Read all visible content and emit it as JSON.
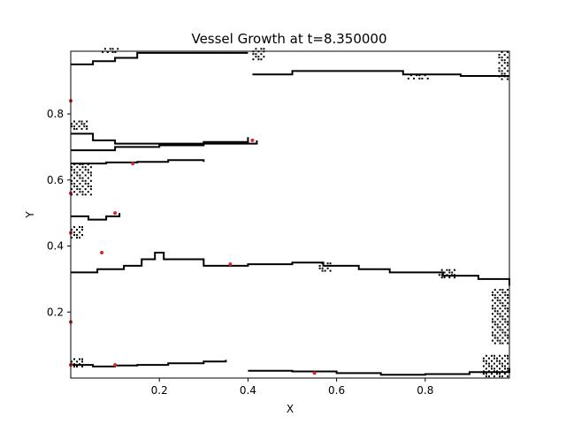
{
  "chart_data": {
    "type": "line",
    "title": "Vessel Growth at t=8.350000",
    "xlabel": "X",
    "ylabel": "Y",
    "xlim": [
      0.0,
      0.99
    ],
    "ylim": [
      0.0,
      0.99
    ],
    "xticks": [
      {
        "v": 0.2,
        "label": "0.2"
      },
      {
        "v": 0.4,
        "label": "0.4"
      },
      {
        "v": 0.6,
        "label": "0.6"
      },
      {
        "v": 0.8,
        "label": "0.8"
      }
    ],
    "yticks": [
      {
        "v": 0.2,
        "label": "0.2"
      },
      {
        "v": 0.4,
        "label": "0.4"
      },
      {
        "v": 0.6,
        "label": "0.6"
      },
      {
        "v": 0.8,
        "label": "0.8"
      }
    ],
    "grid": false,
    "line_color": "#000000",
    "tip_color": "#d62728",
    "vessels": [
      {
        "points": [
          [
            0.0,
            0.95
          ],
          [
            0.05,
            0.96
          ],
          [
            0.1,
            0.97
          ],
          [
            0.15,
            0.985
          ],
          [
            0.24,
            0.985
          ],
          [
            0.4,
            0.985
          ]
        ]
      },
      {
        "points": [
          [
            0.41,
            0.92
          ],
          [
            0.5,
            0.93
          ],
          [
            0.62,
            0.93
          ],
          [
            0.75,
            0.92
          ],
          [
            0.88,
            0.915
          ],
          [
            0.99,
            0.915
          ]
        ]
      },
      {
        "points": [
          [
            0.0,
            0.74
          ],
          [
            0.05,
            0.72
          ],
          [
            0.1,
            0.71
          ],
          [
            0.2,
            0.71
          ],
          [
            0.3,
            0.715
          ],
          [
            0.4,
            0.73
          ]
        ]
      },
      {
        "points": [
          [
            0.0,
            0.69
          ],
          [
            0.1,
            0.7
          ],
          [
            0.2,
            0.705
          ],
          [
            0.3,
            0.71
          ],
          [
            0.42,
            0.72
          ]
        ]
      },
      {
        "points": [
          [
            0.0,
            0.65
          ],
          [
            0.08,
            0.653
          ],
          [
            0.15,
            0.655
          ],
          [
            0.22,
            0.66
          ],
          [
            0.3,
            0.655
          ]
        ]
      },
      {
        "points": [
          [
            0.0,
            0.49
          ],
          [
            0.04,
            0.48
          ],
          [
            0.08,
            0.49
          ],
          [
            0.11,
            0.5
          ]
        ]
      },
      {
        "points": [
          [
            0.0,
            0.32
          ],
          [
            0.06,
            0.33
          ],
          [
            0.12,
            0.34
          ],
          [
            0.16,
            0.36
          ],
          [
            0.19,
            0.38
          ],
          [
            0.21,
            0.36
          ],
          [
            0.3,
            0.34
          ],
          [
            0.4,
            0.345
          ],
          [
            0.5,
            0.35
          ],
          [
            0.57,
            0.34
          ],
          [
            0.65,
            0.33
          ],
          [
            0.72,
            0.32
          ],
          [
            0.84,
            0.31
          ],
          [
            0.92,
            0.3
          ],
          [
            0.99,
            0.28
          ]
        ]
      },
      {
        "points": [
          [
            0.0,
            0.04
          ],
          [
            0.05,
            0.035
          ],
          [
            0.1,
            0.038
          ],
          [
            0.15,
            0.04
          ],
          [
            0.22,
            0.045
          ],
          [
            0.3,
            0.05
          ],
          [
            0.35,
            0.055
          ]
        ]
      },
      {
        "points": [
          [
            0.4,
            0.022
          ],
          [
            0.5,
            0.02
          ],
          [
            0.6,
            0.015
          ],
          [
            0.7,
            0.01
          ],
          [
            0.8,
            0.012
          ],
          [
            0.9,
            0.018
          ],
          [
            0.99,
            0.03
          ]
        ]
      }
    ],
    "clusters": [
      {
        "x": 0.07,
        "y": 0.98,
        "w": 0.04,
        "h": 0.02
      },
      {
        "x": 0.41,
        "y": 0.96,
        "w": 0.03,
        "h": 0.04
      },
      {
        "x": 0.76,
        "y": 0.9,
        "w": 0.05,
        "h": 0.02
      },
      {
        "x": 0.965,
        "y": 0.9,
        "w": 0.025,
        "h": 0.09
      },
      {
        "x": 0.0,
        "y": 0.75,
        "w": 0.04,
        "h": 0.03
      },
      {
        "x": 0.0,
        "y": 0.55,
        "w": 0.05,
        "h": 0.1
      },
      {
        "x": 0.0,
        "y": 0.42,
        "w": 0.03,
        "h": 0.04
      },
      {
        "x": 0.56,
        "y": 0.32,
        "w": 0.03,
        "h": 0.03
      },
      {
        "x": 0.83,
        "y": 0.3,
        "w": 0.04,
        "h": 0.03
      },
      {
        "x": 0.95,
        "y": 0.1,
        "w": 0.04,
        "h": 0.17
      },
      {
        "x": 0.93,
        "y": 0.0,
        "w": 0.06,
        "h": 0.07
      },
      {
        "x": 0.0,
        "y": 0.03,
        "w": 0.03,
        "h": 0.03
      }
    ],
    "tips": [
      {
        "x": 0.0,
        "y": 0.84
      },
      {
        "x": 0.41,
        "y": 0.72
      },
      {
        "x": 0.14,
        "y": 0.65
      },
      {
        "x": 0.0,
        "y": 0.56
      },
      {
        "x": 0.1,
        "y": 0.5
      },
      {
        "x": 0.0,
        "y": 0.44
      },
      {
        "x": 0.07,
        "y": 0.38
      },
      {
        "x": 0.36,
        "y": 0.345
      },
      {
        "x": 0.0,
        "y": 0.17
      },
      {
        "x": 0.1,
        "y": 0.04
      },
      {
        "x": 0.55,
        "y": 0.015
      },
      {
        "x": 0.0,
        "y": 0.04
      }
    ]
  }
}
